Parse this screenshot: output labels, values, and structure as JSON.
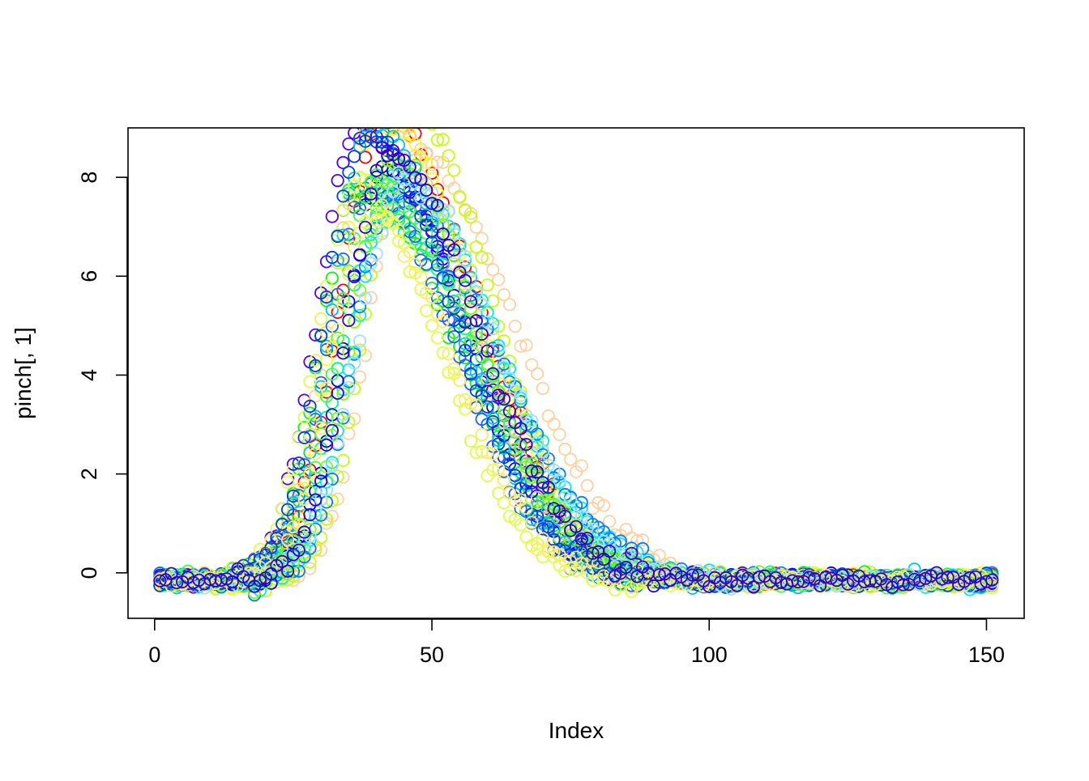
{
  "chart_data": {
    "type": "scatter",
    "title": "",
    "xlabel": "Index",
    "ylabel": "pinch[, 1]",
    "xlim": [
      -4.8,
      156.8
    ],
    "ylim": [
      -0.92,
      9.0
    ],
    "x_ticks": [
      0,
      50,
      100,
      150
    ],
    "x_tick_labels": [
      "0",
      "50",
      "100",
      "150"
    ],
    "y_ticks": [
      0,
      2,
      4,
      6,
      8
    ],
    "y_tick_labels": [
      "0",
      "2",
      "4",
      "6",
      "8"
    ],
    "grid": false,
    "legend": "none",
    "marker": "open-circle",
    "x_index_range": [
      1,
      151
    ],
    "curves_note_values": [],
    "series_colors": [
      "#ff0000",
      "#ffd0a0",
      "#ffff00",
      "#c8ff00",
      "#00ff00",
      "#00ff80",
      "#00e8ff",
      "#0080ff",
      "#0000ff",
      "#5000ff",
      "#ffd280",
      "#2060ff",
      "#80ff00",
      "#00c0ff",
      "#e0ff40",
      "#40ff40",
      "#0040e0",
      "#a0e0ff",
      "#ffea60",
      "#3000d0"
    ],
    "curve_model": {
      "baseline": -0.15,
      "peak_index_range": [
        36,
        46
      ],
      "peak_value_range": [
        6.9,
        9.6
      ],
      "rise_start_index": 14,
      "return_to_baseline_index": 88
    }
  }
}
